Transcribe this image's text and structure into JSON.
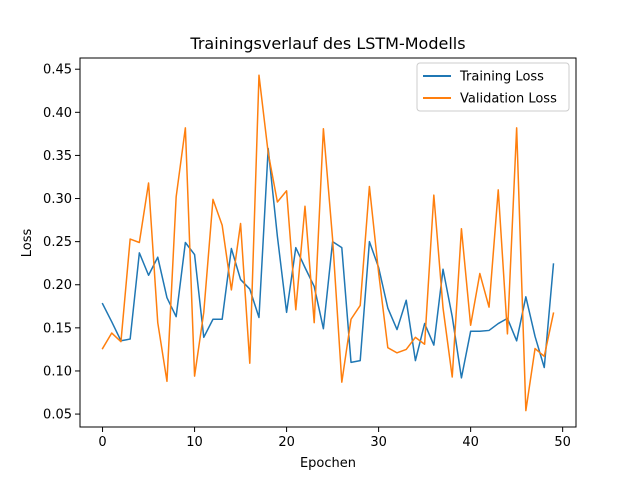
{
  "chart_data": {
    "type": "line",
    "title": "Trainingsverlauf des LSTM-Modells",
    "xlabel": "Epochen",
    "ylabel": "Loss",
    "xlim": [
      -2.45,
      51.45
    ],
    "ylim": [
      0.035,
      0.463
    ],
    "x_ticks": [
      0,
      10,
      20,
      30,
      40,
      50
    ],
    "y_ticks": [
      0.05,
      0.1,
      0.15,
      0.2,
      0.25,
      0.3,
      0.35,
      0.4,
      0.45
    ],
    "x_tick_labels": [
      "0",
      "10",
      "20",
      "30",
      "40",
      "50"
    ],
    "y_tick_labels": [
      "0.05",
      "0.10",
      "0.15",
      "0.20",
      "0.25",
      "0.30",
      "0.35",
      "0.40",
      "0.45"
    ],
    "grid": false,
    "legend_position": "top-right",
    "x": [
      0,
      1,
      2,
      3,
      4,
      5,
      6,
      7,
      8,
      9,
      10,
      11,
      12,
      13,
      14,
      15,
      16,
      17,
      18,
      19,
      20,
      21,
      22,
      23,
      24,
      25,
      26,
      27,
      28,
      29,
      30,
      31,
      32,
      33,
      34,
      35,
      36,
      37,
      38,
      39,
      40,
      41,
      42,
      43,
      44,
      45,
      46,
      47,
      48,
      49
    ],
    "series": [
      {
        "name": "Training Loss",
        "color": "#1f77b4",
        "values": [
          0.178,
          0.157,
          0.135,
          0.137,
          0.237,
          0.211,
          0.232,
          0.185,
          0.163,
          0.249,
          0.235,
          0.139,
          0.16,
          0.16,
          0.242,
          0.206,
          0.195,
          0.162,
          0.358,
          0.256,
          0.168,
          0.243,
          0.22,
          0.198,
          0.149,
          0.25,
          0.243,
          0.11,
          0.112,
          0.25,
          0.22,
          0.173,
          0.148,
          0.182,
          0.112,
          0.155,
          0.13,
          0.218,
          0.163,
          0.092,
          0.146,
          0.146,
          0.147,
          0.155,
          0.161,
          0.135,
          0.186,
          0.14,
          0.104,
          0.224
        ]
      },
      {
        "name": "Validation Loss",
        "color": "#ff7f0e",
        "values": [
          0.126,
          0.144,
          0.134,
          0.253,
          0.249,
          0.318,
          0.156,
          0.088,
          0.302,
          0.382,
          0.094,
          0.168,
          0.299,
          0.269,
          0.194,
          0.271,
          0.109,
          0.443,
          0.353,
          0.296,
          0.309,
          0.171,
          0.291,
          0.156,
          0.381,
          0.253,
          0.087,
          0.16,
          0.176,
          0.314,
          0.214,
          0.127,
          0.121,
          0.125,
          0.139,
          0.131,
          0.304,
          0.173,
          0.093,
          0.265,
          0.153,
          0.213,
          0.174,
          0.31,
          0.143,
          0.382,
          0.054,
          0.126,
          0.117,
          0.167
        ]
      }
    ]
  }
}
